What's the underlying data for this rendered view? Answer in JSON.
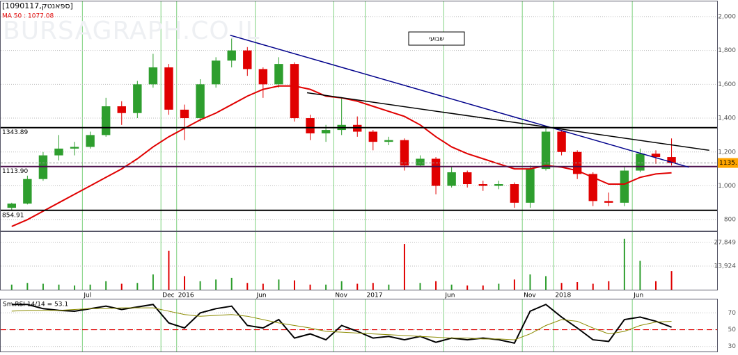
{
  "chart_data": [
    {
      "type": "candlestick",
      "title": "[1090117,ספאנטק]",
      "ma_label": "MA 50 : 1077.08",
      "watermark": "BURSAGRAPH.CO.IL",
      "period": "שבועי",
      "x": [
        -4.5,
        -3.5,
        -2.5,
        -1.5,
        -0.5,
        0.5,
        1.5,
        2.5,
        3.5,
        4.5,
        5.5,
        6.5,
        7.5,
        8.5,
        9.5,
        10.5,
        11.5,
        12.5,
        13.5,
        14.5,
        15.5,
        16.5,
        17.5,
        18.5,
        19.5,
        20.5,
        21.5,
        22.5,
        23.5,
        24.5,
        25.5,
        26.5,
        27.5,
        28.5,
        29.5,
        30.5,
        31.5,
        32.5,
        33.5,
        34.5,
        35.5,
        36.5,
        37.5
      ],
      "open": [
        870,
        895,
        1040,
        1180,
        1220,
        1230,
        1300,
        1470,
        1430,
        1600,
        1700,
        1450,
        1400,
        1600,
        1740,
        1800,
        1690,
        1600,
        1720,
        1400,
        1310,
        1330,
        1360,
        1320,
        1260,
        1270,
        1120,
        1160,
        1000,
        1080,
        1010,
        1000,
        1010,
        900,
        1100,
        1320,
        1200,
        1070,
        910,
        900,
        1090,
        1190,
        1170
      ],
      "high": [
        900,
        1060,
        1200,
        1300,
        1260,
        1320,
        1520,
        1500,
        1620,
        1780,
        1720,
        1480,
        1630,
        1760,
        1870,
        1820,
        1700,
        1760,
        1730,
        1420,
        1360,
        1520,
        1410,
        1330,
        1290,
        1280,
        1180,
        1170,
        1110,
        1090,
        1030,
        1030,
        1020,
        1120,
        1350,
        1330,
        1210,
        1080,
        960,
        1110,
        1220,
        1210,
        1280
      ],
      "low": [
        855,
        890,
        1030,
        1150,
        1180,
        1220,
        1290,
        1360,
        1400,
        1580,
        1420,
        1270,
        1380,
        1580,
        1700,
        1650,
        1520,
        1580,
        1380,
        1270,
        1260,
        1300,
        1290,
        1210,
        1240,
        1090,
        1110,
        950,
        990,
        990,
        970,
        980,
        870,
        870,
        1090,
        1180,
        1040,
        880,
        880,
        880,
        1080,
        1130,
        1120
      ],
      "close": [
        895,
        1040,
        1180,
        1220,
        1230,
        1300,
        1470,
        1430,
        1600,
        1700,
        1450,
        1400,
        1600,
        1740,
        1800,
        1690,
        1600,
        1720,
        1400,
        1310,
        1330,
        1360,
        1320,
        1260,
        1270,
        1120,
        1160,
        1000,
        1080,
        1010,
        1000,
        1010,
        900,
        1100,
        1320,
        1200,
        1070,
        910,
        900,
        1090,
        1190,
        1170,
        1135
      ],
      "up_color": "#2e9e2e",
      "down_color": "#e00000",
      "last_label": "1135.",
      "ma": {
        "color": "#e00000",
        "values": [
          760,
          800,
          850,
          900,
          950,
          1000,
          1050,
          1100,
          1160,
          1230,
          1290,
          1340,
          1390,
          1430,
          1480,
          1530,
          1570,
          1590,
          1590,
          1570,
          1530,
          1520,
          1500,
          1470,
          1440,
          1410,
          1360,
          1290,
          1230,
          1190,
          1160,
          1130,
          1100,
          1100,
          1120,
          1110,
          1090,
          1050,
          1010,
          1010,
          1050,
          1070,
          1077
        ]
      },
      "levels": [
        1343.89,
        {
          "value": 1113.9,
          "label": "1113.90"
        },
        854.91
      ],
      "trendlines": [
        {
          "color": "#00008b",
          "x": [
            9.4,
            38.6
          ],
          "y": [
            1890,
            1110
          ]
        },
        {
          "color": "#000000",
          "x": [
            14.3,
            39.9
          ],
          "y": [
            1550,
            1210
          ]
        }
      ],
      "xlim": [
        -5.2,
        40.4
      ],
      "xticks": [
        {
          "value": 0,
          "label": "Jul"
        },
        {
          "value": 5,
          "label": "Dec"
        },
        {
          "value": 6,
          "label": "2016"
        },
        {
          "value": 11,
          "label": "Jun"
        },
        {
          "value": 16,
          "label": "Nov"
        },
        {
          "value": 18,
          "label": "2017"
        },
        {
          "value": 23,
          "label": "Jun"
        },
        {
          "value": 28,
          "label": "Nov"
        },
        {
          "value": 30,
          "label": "2018"
        },
        {
          "value": 35,
          "label": "Jun"
        }
      ],
      "ylim": [
        735,
        2090
      ],
      "yticks": [
        800,
        {
          "value": 1000,
          "label": "1,000"
        },
        {
          "value": 1200,
          "label": "1,200"
        },
        {
          "value": 1400,
          "label": "1,400"
        },
        {
          "value": 1600,
          "label": "1,600"
        },
        {
          "value": 1800,
          "label": "1,800"
        },
        {
          "value": 2000,
          "label": "2,000"
        }
      ]
    },
    {
      "type": "bar",
      "values": [
        3000,
        4000,
        3500,
        3000,
        2500,
        3000,
        5000,
        3500,
        4000,
        9000,
        23000,
        8000,
        5000,
        6000,
        7000,
        4000,
        3500,
        6000,
        5500,
        3000,
        3000,
        5000,
        3500,
        4000,
        3000,
        27000,
        4000,
        5000,
        3000,
        2500,
        2500,
        3500,
        6000,
        9000,
        8000,
        4000,
        4500,
        3500,
        5000,
        30000,
        17000,
        5000,
        11000
      ],
      "ylim": [
        0,
        34000
      ],
      "yticks": [
        {
          "value": 13924,
          "label": "13,924"
        },
        {
          "value": 27849,
          "label": "27,849"
        }
      ]
    },
    {
      "type": "line",
      "title": "Sm.RSI 14/14 = 53.1",
      "series": [
        {
          "color": "#000000",
          "values": [
            80,
            80,
            75,
            73,
            72,
            75,
            78,
            74,
            77,
            80,
            58,
            52,
            70,
            75,
            78,
            55,
            52,
            62,
            40,
            45,
            38,
            55,
            48,
            40,
            42,
            38,
            42,
            35,
            40,
            38,
            40,
            38,
            34,
            72,
            80,
            65,
            52,
            38,
            36,
            62,
            65,
            60,
            53
          ]
        },
        {
          "color": "#8b8b00",
          "values": [
            72,
            73,
            73,
            73,
            74,
            75,
            75,
            76,
            76,
            76,
            72,
            68,
            66,
            67,
            68,
            66,
            62,
            58,
            55,
            52,
            48,
            47,
            46,
            45,
            44,
            43,
            42,
            41,
            40,
            40,
            39,
            39,
            38,
            45,
            55,
            62,
            60,
            52,
            45,
            48,
            55,
            59,
            60
          ]
        }
      ],
      "ref_line": 50,
      "ref_color": "#e00000",
      "ylim": [
        24,
        86
      ],
      "yticks": [
        30,
        50,
        70
      ]
    }
  ]
}
